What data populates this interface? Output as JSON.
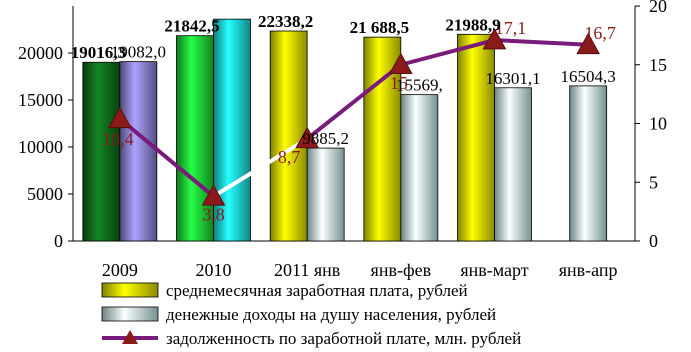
{
  "chart_data": {
    "type": "bar",
    "categories": [
      "2009",
      "2010",
      "2011 янв",
      "янв-фев",
      "янв-март",
      "янв-апр"
    ],
    "series": [
      {
        "name": "среднемесячная заработная плата, рублей",
        "type": "bar",
        "axis": "left",
        "values": [
          19016.3,
          21842.5,
          22338.2,
          21688.5,
          21988.9,
          null
        ],
        "labels": [
          "19016,3",
          "21842,5",
          "22338,2",
          "21 688,5",
          "21988,9",
          ""
        ],
        "colors": [
          "#0f6b1a",
          "#1ed636",
          "#e6e600",
          "#e6e600",
          "#e6e600",
          null
        ]
      },
      {
        "name": "денежные доходы на душу населения, рублей",
        "type": "bar",
        "axis": "left",
        "values": [
          19082.0,
          23600,
          9885.2,
          15569.0,
          16301.1,
          16504.3
        ],
        "labels": [
          "19082,0",
          "",
          "9885,2",
          "15569,",
          "16301,1",
          "16504,3"
        ],
        "colors": [
          "#8a82d6",
          "#1ee0e0",
          "#c8f0f0",
          "#c8f0f0",
          "#c8f0f0",
          "#c8f0f0"
        ]
      },
      {
        "name": "задолженность по заработной плате, млн. рублей",
        "type": "line",
        "axis": "right",
        "values": [
          10.4,
          3.8,
          8.7,
          15,
          17.1,
          16.7
        ],
        "labels": [
          "10,4",
          "3,8",
          "8,7",
          "15",
          "17,1",
          "16,7"
        ],
        "color": "#7a1a7a",
        "marker": "triangle"
      }
    ],
    "left_axis": {
      "ticks": [
        "0",
        "5000",
        "10000",
        "15000",
        "20000"
      ],
      "ylim": [
        0,
        25000
      ]
    },
    "right_axis": {
      "ticks": [
        "0",
        "5",
        "10",
        "15",
        "20"
      ],
      "ylim": [
        0,
        20
      ]
    },
    "grid": false,
    "legend_position": "bottom"
  }
}
